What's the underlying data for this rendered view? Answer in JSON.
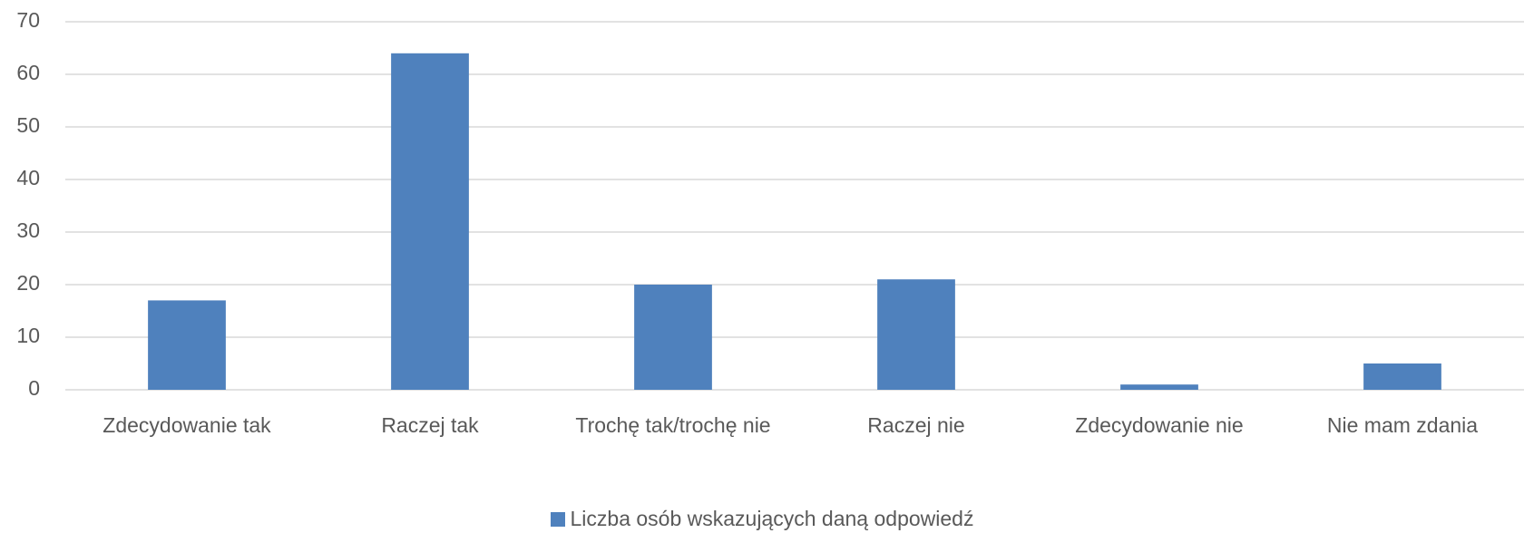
{
  "chart_data": {
    "type": "bar",
    "categories": [
      "Zdecydowanie tak",
      "Raczej tak",
      "Trochę tak/trochę nie",
      "Raczej nie",
      "Zdecydowanie nie",
      "Nie mam zdania"
    ],
    "series": [
      {
        "name": "Liczba osób wskazujących daną odpowiedź",
        "color": "#4f81bd",
        "values": [
          17,
          64,
          20,
          21,
          1,
          5
        ]
      }
    ],
    "ylim": [
      0,
      70
    ],
    "yticks": [
      0,
      10,
      20,
      30,
      40,
      50,
      60,
      70
    ],
    "grid": true,
    "legend": "bottom"
  }
}
